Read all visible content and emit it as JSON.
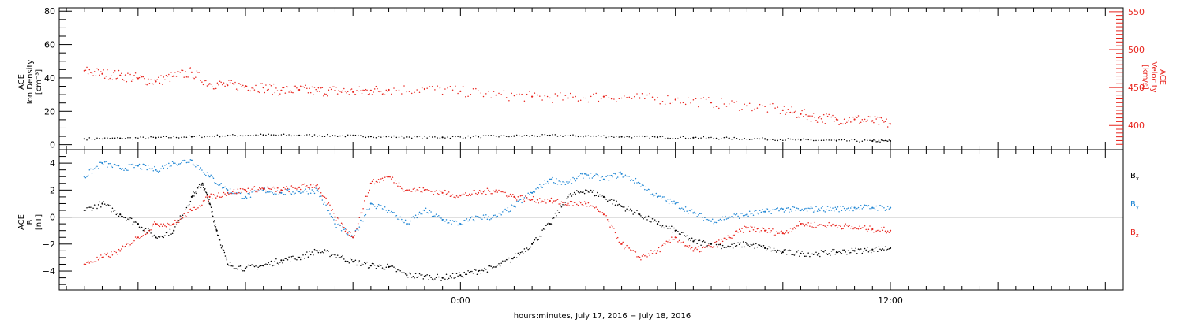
{
  "chart_data": [
    {
      "type": "scatter",
      "panel": "top",
      "ylabel_left": [
        "ACE",
        "Ion Density",
        "[cm⁻³]"
      ],
      "ylabel_right": [
        "ACE",
        "Velocity",
        "[km/s]"
      ],
      "ylim_left": [
        -3,
        82
      ],
      "yticks_left": [
        "0",
        "20",
        "40",
        "60",
        "80"
      ],
      "ylim_right": [
        368,
        555
      ],
      "yticks_right": [
        "400",
        "450",
        "500",
        "550"
      ],
      "right_axis_color": "#e8231c",
      "series": [
        {
          "name": "ACE Ion Density",
          "axis": "left",
          "color": "#000000",
          "points": [
            [
              -10.5,
              3.5
            ],
            [
              -9.5,
              3.8
            ],
            [
              -8.5,
              4.2
            ],
            [
              -7.5,
              4.8
            ],
            [
              -6.5,
              5.5
            ],
            [
              -5.5,
              5.8
            ],
            [
              -4.5,
              5.6
            ],
            [
              -3.5,
              5.4
            ],
            [
              -2.5,
              5.0
            ],
            [
              -1.5,
              4.6
            ],
            [
              -0.5,
              4.4
            ],
            [
              0.5,
              4.8
            ],
            [
              1.5,
              5.2
            ],
            [
              2.5,
              5.5
            ],
            [
              3.5,
              5.2
            ],
            [
              4.5,
              4.8
            ],
            [
              5.5,
              4.5
            ],
            [
              6.5,
              4.2
            ],
            [
              7.5,
              3.8
            ],
            [
              8.5,
              3.4
            ],
            [
              9.5,
              2.8
            ],
            [
              10.5,
              2.4
            ],
            [
              11.5,
              2.2
            ],
            [
              12.0,
              2.2
            ]
          ]
        },
        {
          "name": "ACE Velocity",
          "axis": "right",
          "color": "#e8231c",
          "points": [
            [
              -10.5,
              472
            ],
            [
              -10.0,
              468
            ],
            [
              -9.5,
              466
            ],
            [
              -9.0,
              462
            ],
            [
              -8.5,
              458
            ],
            [
              -8.0,
              465
            ],
            [
              -7.5,
              470
            ],
            [
              -7.0,
              455
            ],
            [
              -6.5,
              453
            ],
            [
              -6.0,
              452
            ],
            [
              -5.5,
              450
            ],
            [
              -5.0,
              446
            ],
            [
              -4.5,
              447
            ],
            [
              -4.0,
              445
            ],
            [
              -3.5,
              446
            ],
            [
              -3.0,
              444
            ],
            [
              -2.5,
              446
            ],
            [
              -2.0,
              447
            ],
            [
              -1.0,
              448
            ],
            [
              0.0,
              445
            ],
            [
              1.0,
              440
            ],
            [
              2.0,
              438
            ],
            [
              3.0,
              436
            ],
            [
              4.0,
              438
            ],
            [
              5.0,
              436
            ],
            [
              6.0,
              434
            ],
            [
              7.0,
              430
            ],
            [
              8.0,
              426
            ],
            [
              9.0,
              420
            ],
            [
              9.5,
              415
            ],
            [
              10.0,
              410
            ],
            [
              10.5,
              408
            ],
            [
              11.0,
              408
            ],
            [
              11.5,
              406
            ],
            [
              12.0,
              402
            ]
          ]
        }
      ]
    },
    {
      "type": "scatter",
      "panel": "bottom",
      "ylabel_left": [
        "ACE",
        "B",
        "[nT]"
      ],
      "ylim": [
        -5.4,
        5.0
      ],
      "yticks": [
        "−4",
        "−2",
        "0",
        "2",
        "4"
      ],
      "zero_line": true,
      "series": [
        {
          "name": "Bx",
          "label": "B",
          "sub": "x",
          "color": "#000000",
          "points": [
            [
              -10.5,
              0.5
            ],
            [
              -10.0,
              1.0
            ],
            [
              -9.5,
              0.2
            ],
            [
              -9.0,
              -0.5
            ],
            [
              -8.5,
              -1.5
            ],
            [
              -8.0,
              -1.0
            ],
            [
              -7.5,
              1.5
            ],
            [
              -7.2,
              2.5
            ],
            [
              -7.0,
              1.0
            ],
            [
              -6.8,
              -1.0
            ],
            [
              -6.5,
              -3.5
            ],
            [
              -6.0,
              -3.8
            ],
            [
              -5.5,
              -3.6
            ],
            [
              -5.0,
              -3.2
            ],
            [
              -4.5,
              -3.0
            ],
            [
              -4.0,
              -2.5
            ],
            [
              -3.5,
              -2.8
            ],
            [
              -3.0,
              -3.3
            ],
            [
              -2.5,
              -3.6
            ],
            [
              -2.0,
              -3.7
            ],
            [
              -1.5,
              -4.3
            ],
            [
              -1.0,
              -4.4
            ],
            [
              -0.5,
              -4.5
            ],
            [
              0.0,
              -4.3
            ],
            [
              0.5,
              -4.0
            ],
            [
              1.0,
              -3.7
            ],
            [
              1.5,
              -3.0
            ],
            [
              2.0,
              -2.0
            ],
            [
              2.5,
              -0.5
            ],
            [
              3.0,
              1.5
            ],
            [
              3.5,
              2.0
            ],
            [
              4.0,
              1.5
            ],
            [
              4.5,
              0.8
            ],
            [
              5.0,
              0.2
            ],
            [
              5.5,
              -0.5
            ],
            [
              6.0,
              -1.0
            ],
            [
              6.5,
              -1.8
            ],
            [
              7.0,
              -2.0
            ],
            [
              7.5,
              -2.2
            ],
            [
              8.0,
              -2.0
            ],
            [
              8.5,
              -2.3
            ],
            [
              9.0,
              -2.6
            ],
            [
              9.5,
              -2.7
            ],
            [
              10.0,
              -2.7
            ],
            [
              10.5,
              -2.6
            ],
            [
              11.0,
              -2.5
            ],
            [
              11.5,
              -2.4
            ],
            [
              12.0,
              -2.3
            ]
          ]
        },
        {
          "name": "By",
          "label": "B",
          "sub": "y",
          "color": "#1f86d4",
          "points": [
            [
              -10.5,
              3.0
            ],
            [
              -10.0,
              4.0
            ],
            [
              -9.5,
              3.6
            ],
            [
              -9.0,
              3.8
            ],
            [
              -8.5,
              3.5
            ],
            [
              -8.0,
              4.0
            ],
            [
              -7.5,
              4.2
            ],
            [
              -7.0,
              3.0
            ],
            [
              -6.5,
              2.0
            ],
            [
              -6.0,
              1.5
            ],
            [
              -5.5,
              2.0
            ],
            [
              -5.0,
              1.8
            ],
            [
              -4.5,
              1.9
            ],
            [
              -4.0,
              2.0
            ],
            [
              -3.5,
              -0.5
            ],
            [
              -3.0,
              -1.5
            ],
            [
              -2.5,
              1.0
            ],
            [
              -2.0,
              0.5
            ],
            [
              -1.5,
              -0.5
            ],
            [
              -1.0,
              0.5
            ],
            [
              -0.5,
              -0.2
            ],
            [
              0.0,
              -0.5
            ],
            [
              0.5,
              0.0
            ],
            [
              1.0,
              0.0
            ],
            [
              1.5,
              0.8
            ],
            [
              2.0,
              1.8
            ],
            [
              2.5,
              2.8
            ],
            [
              3.0,
              2.5
            ],
            [
              3.5,
              3.2
            ],
            [
              4.0,
              2.8
            ],
            [
              4.5,
              3.2
            ],
            [
              5.0,
              2.5
            ],
            [
              5.5,
              1.5
            ],
            [
              6.0,
              1.0
            ],
            [
              6.5,
              0.3
            ],
            [
              7.0,
              -0.3
            ],
            [
              7.5,
              0.0
            ],
            [
              8.0,
              0.2
            ],
            [
              8.5,
              0.4
            ],
            [
              9.0,
              0.6
            ],
            [
              9.5,
              0.5
            ],
            [
              10.0,
              0.6
            ],
            [
              10.5,
              0.6
            ],
            [
              11.0,
              0.7
            ],
            [
              11.5,
              0.7
            ],
            [
              12.0,
              0.7
            ]
          ]
        },
        {
          "name": "Bz",
          "label": "B",
          "sub": "z",
          "color": "#e8231c",
          "points": [
            [
              -10.5,
              -3.5
            ],
            [
              -10.0,
              -3.0
            ],
            [
              -9.5,
              -2.5
            ],
            [
              -9.0,
              -1.5
            ],
            [
              -8.5,
              -0.5
            ],
            [
              -8.0,
              -0.5
            ],
            [
              -7.5,
              0.5
            ],
            [
              -7.0,
              1.5
            ],
            [
              -6.5,
              1.8
            ],
            [
              -6.0,
              2.0
            ],
            [
              -5.5,
              2.1
            ],
            [
              -5.0,
              2.0
            ],
            [
              -4.5,
              2.2
            ],
            [
              -4.0,
              2.4
            ],
            [
              -3.5,
              0.0
            ],
            [
              -3.0,
              -1.5
            ],
            [
              -2.5,
              2.5
            ],
            [
              -2.0,
              3.0
            ],
            [
              -1.5,
              2.0
            ],
            [
              -1.0,
              2.0
            ],
            [
              -0.5,
              1.8
            ],
            [
              0.0,
              1.6
            ],
            [
              0.5,
              1.8
            ],
            [
              1.0,
              2.0
            ],
            [
              1.5,
              1.5
            ],
            [
              2.0,
              1.3
            ],
            [
              2.5,
              1.2
            ],
            [
              3.0,
              1.0
            ],
            [
              3.5,
              1.0
            ],
            [
              4.0,
              0.2
            ],
            [
              4.5,
              -2.0
            ],
            [
              5.0,
              -3.0
            ],
            [
              5.5,
              -2.5
            ],
            [
              6.0,
              -1.5
            ],
            [
              6.5,
              -2.5
            ],
            [
              7.0,
              -2.2
            ],
            [
              7.5,
              -1.5
            ],
            [
              8.0,
              -0.8
            ],
            [
              8.5,
              -1.0
            ],
            [
              9.0,
              -1.2
            ],
            [
              9.5,
              -0.5
            ],
            [
              10.0,
              -0.6
            ],
            [
              10.5,
              -0.6
            ],
            [
              11.0,
              -0.8
            ],
            [
              11.5,
              -0.9
            ],
            [
              12.0,
              -1.0
            ]
          ]
        }
      ]
    }
  ],
  "x_axis": {
    "xlim": [
      -11.2,
      18.5
    ],
    "tick_labels": [
      {
        "x": 0,
        "label": "0:00"
      },
      {
        "x": 12,
        "label": "12:00"
      }
    ],
    "major_ticks": [
      -9,
      -6,
      -3,
      0,
      3,
      6,
      9,
      12,
      15,
      18
    ],
    "minor_step": 0.5,
    "title": "hours:minutes, July 17, 2016 − July 18, 2016"
  }
}
